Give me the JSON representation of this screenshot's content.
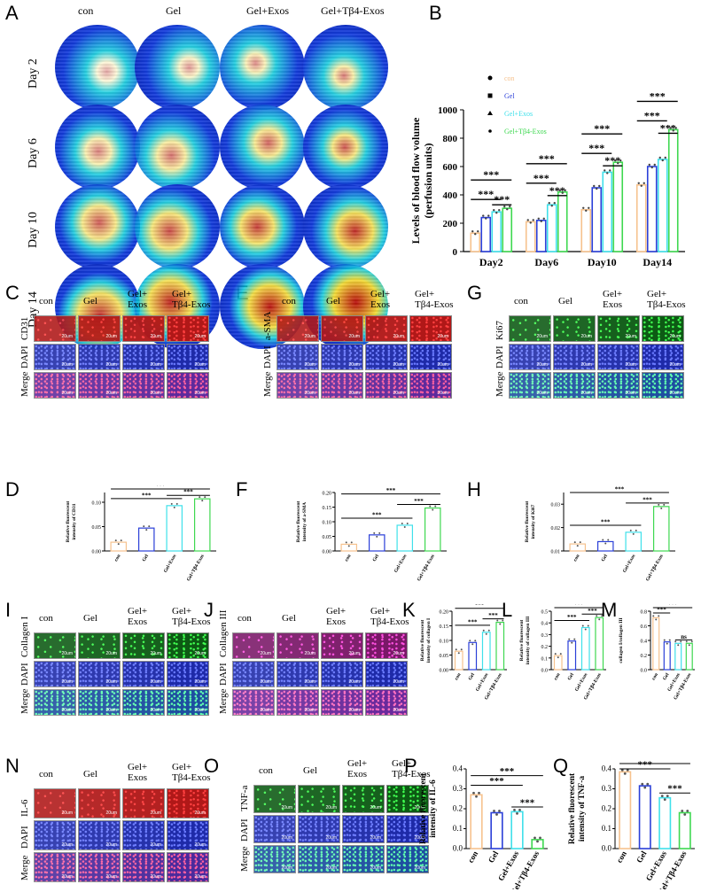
{
  "panels": [
    "A",
    "B",
    "C",
    "D",
    "E",
    "F",
    "G",
    "H",
    "I",
    "J",
    "K",
    "L",
    "M",
    "N",
    "O",
    "P",
    "Q"
  ],
  "groups": [
    "con",
    "Gel",
    "Gel+Exos",
    "Gel+Tβ4-Exos"
  ],
  "groups_stacked": [
    "con",
    "Gel",
    "Gel+\nExos",
    "Gel+\nTβ4-Exos"
  ],
  "days": [
    "Day 2",
    "Day 6",
    "Day 10",
    "Day 14"
  ],
  "stain_rows": {
    "C": [
      "CD31",
      "DAPI",
      "Merge"
    ],
    "E": [
      "a-SMA",
      "DAPI",
      "Merge"
    ],
    "G": [
      "Ki67",
      "DAPI",
      "Merge"
    ],
    "I": [
      "Collagen I",
      "DAPI",
      "Merge"
    ],
    "J": [
      "Collagen III",
      "DAPI",
      "Merge"
    ],
    "N": [
      "IL-6",
      "DAPI",
      "Merge"
    ],
    "O": [
      "TNF-a",
      "DAPI",
      "Merge"
    ]
  },
  "scalebar": "20um",
  "sig": "***",
  "ns": "ns",
  "chart_B": {
    "type": "bar",
    "ylabel": "Levels of blood flow volume\n(perfusion units)",
    "categories": [
      "Day2",
      "Day6",
      "Day10",
      "Day14"
    ],
    "series": [
      {
        "name": "con",
        "values": [
          130,
          210,
          295,
          470
        ]
      },
      {
        "name": "Gel",
        "values": [
          240,
          220,
          450,
          600
        ]
      },
      {
        "name": "Gel+Exos",
        "values": [
          280,
          330,
          560,
          650
        ]
      },
      {
        "name": "Gel+Tβ4-Exos",
        "values": [
          305,
          420,
          630,
          860
        ]
      }
    ],
    "ylim": [
      0,
      1000
    ],
    "yticks": [
      "0",
      "200",
      "400",
      "600",
      "800",
      "1000"
    ]
  },
  "chart_data": [
    {
      "id": "D",
      "type": "bar",
      "ylabel": "Relative fluorescent\nintensity of CD31",
      "categories": [
        "con",
        "Gel",
        "Gel+Exos",
        "Gel+Tβ4-Exos"
      ],
      "values": [
        0.018,
        0.047,
        0.093,
        0.107
      ],
      "ylim": [
        0,
        0.12
      ],
      "yticks": [
        "0.00",
        "0.05",
        "0.10"
      ]
    },
    {
      "id": "F",
      "type": "bar",
      "ylabel": "Relative fluorescent\nintensity of a-SMA",
      "categories": [
        "con",
        "Gel",
        "Gel+Exos",
        "Gel+Tβ4-Exos"
      ],
      "values": [
        0.023,
        0.055,
        0.088,
        0.147
      ],
      "ylim": [
        0,
        0.2
      ],
      "yticks": [
        "0.00",
        "0.05",
        "0.10",
        "0.15",
        "0.20"
      ]
    },
    {
      "id": "H",
      "type": "bar",
      "ylabel": "Relative fluorescent\nintensity of Ki67",
      "categories": [
        "con",
        "Gel",
        "Gel+Exos",
        "Gel+Tβ4-Exos"
      ],
      "values": [
        0.013,
        0.014,
        0.018,
        0.029
      ],
      "ylim": [
        0.01,
        0.035
      ],
      "yticks": [
        "0.01",
        "0.02",
        "0.03"
      ]
    },
    {
      "id": "K",
      "type": "bar",
      "ylabel": "Relative fluorescent\nintensity of collagen I",
      "categories": [
        "con",
        "Gel",
        "Gel+Exos",
        "Gel+Tβ4-Exos"
      ],
      "values": [
        0.063,
        0.093,
        0.128,
        0.162
      ],
      "ylim": [
        0,
        0.2
      ],
      "yticks": [
        "0.00",
        "0.05",
        "0.10",
        "0.15",
        "0.20"
      ]
    },
    {
      "id": "L",
      "type": "bar",
      "ylabel": "Relative fluorescent\nintensity of collagen III",
      "categories": [
        "con",
        "Gel",
        "Gel+Exos",
        "Gel+Tβ4-Exos"
      ],
      "values": [
        0.12,
        0.245,
        0.36,
        0.445
      ],
      "ylim": [
        0,
        0.5
      ],
      "yticks": [
        "0.0",
        "0.1",
        "0.2",
        "0.3",
        "0.4",
        "0.5"
      ]
    },
    {
      "id": "M",
      "type": "bar",
      "ylabel": "collagen I/collagen III",
      "categories": [
        "con",
        "Gel",
        "Gel+Exos",
        "Gel+Tβ4-Exos"
      ],
      "values": [
        0.71,
        0.38,
        0.36,
        0.36
      ],
      "ylim": [
        0,
        0.8
      ],
      "yticks": [
        "0.0",
        "0.2",
        "0.4",
        "0.6",
        "0.8"
      ]
    },
    {
      "id": "P",
      "type": "bar",
      "ylabel": "Relative fluorescent\nintensity of IL-6",
      "categories": [
        "con",
        "Gel",
        "Gel+Exos",
        "Gel+Tβ4-Exos"
      ],
      "values": [
        0.27,
        0.18,
        0.185,
        0.045
      ],
      "ylim": [
        0,
        0.4
      ],
      "yticks": [
        "0.0",
        "0.1",
        "0.2",
        "0.3",
        "0.4"
      ]
    },
    {
      "id": "Q",
      "type": "bar",
      "ylabel": "Relative fluorescent\nintensity of TNF-a",
      "categories": [
        "con",
        "Gel",
        "Gel+Exos",
        "Gel+Tβ4-Exos"
      ],
      "values": [
        0.385,
        0.315,
        0.255,
        0.18
      ],
      "ylim": [
        0,
        0.4
      ],
      "yticks": [
        "0.0",
        "0.1",
        "0.2",
        "0.3",
        "0.4"
      ]
    }
  ],
  "colors": {
    "con": "#f6c28e",
    "Gel": "#2a3fd8",
    "Gel+Exos": "#3fe0ea",
    "Gel+Tβ4-Exos": "#3ed850"
  }
}
